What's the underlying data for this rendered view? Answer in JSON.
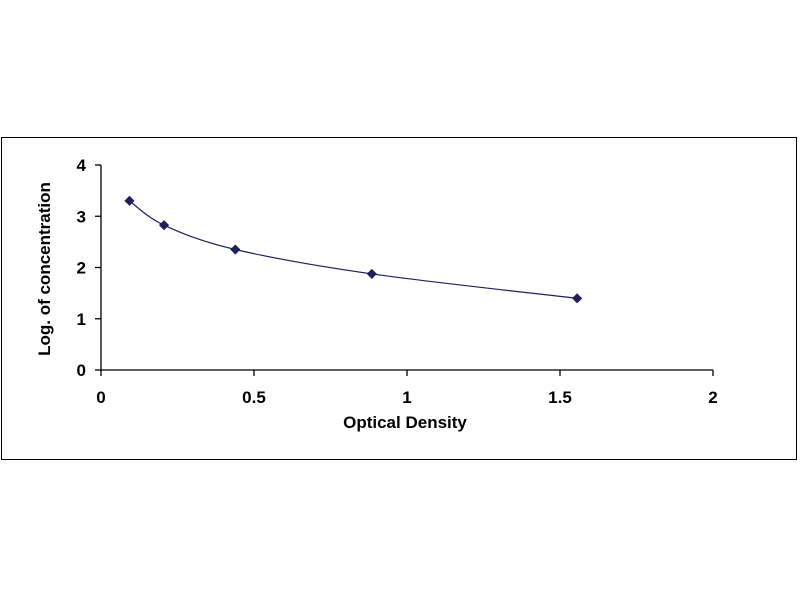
{
  "chart_data": {
    "type": "scatter",
    "title": "",
    "xlabel": "Optical Density",
    "ylabel": "Log. of concentration",
    "xlim": [
      0,
      2
    ],
    "ylim": [
      0,
      4
    ],
    "x_ticks": [
      "0",
      "0.5",
      "1",
      "1.5",
      "2"
    ],
    "y_ticks": [
      "0",
      "1",
      "2",
      "3",
      "4"
    ],
    "grid": false,
    "legend": "none",
    "series": [
      {
        "x": [
          0.093,
          0.206,
          0.439,
          0.885,
          1.556
        ],
        "y": [
          3.301,
          2.826,
          2.351,
          1.875,
          1.398
        ],
        "marker": "diamond",
        "trendline": "smooth",
        "color": "#1f1f5c"
      }
    ],
    "colors": {
      "axis": "#000000",
      "series": "#1f1f5c"
    }
  }
}
